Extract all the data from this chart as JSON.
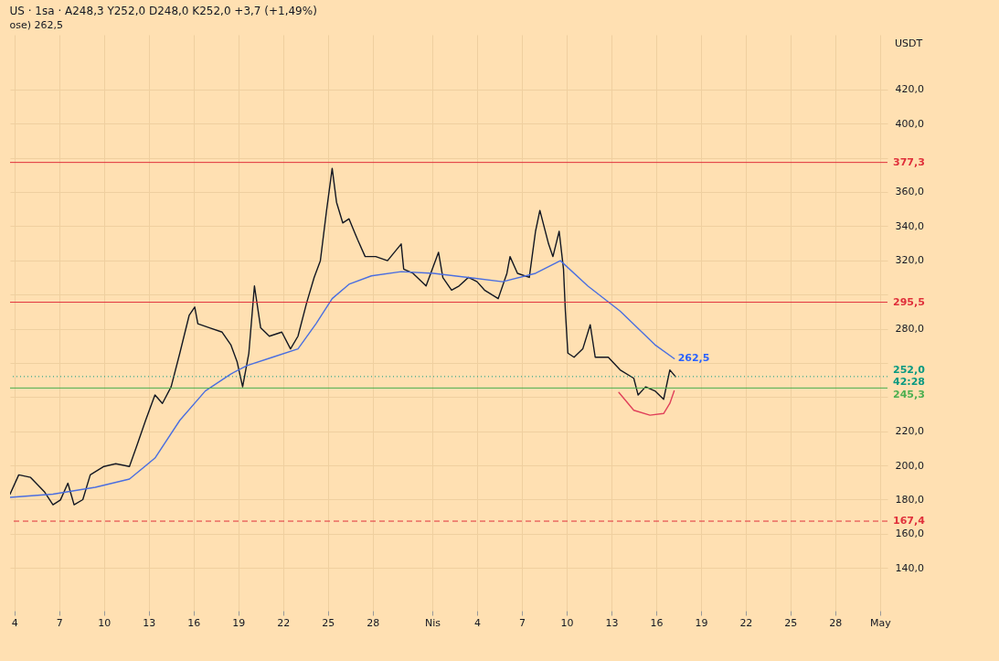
{
  "chart_data": {
    "type": "line",
    "title": "US · 1sa · A248,3 Y252,0 D248,0 K252,0 +3,7 (+1,49%)",
    "subtitle": "ose) 262,5",
    "xlim": [
      "--03-03T17:00",
      "--05-01T12:00"
    ],
    "ylim": [
      115,
      452
    ],
    "xticks": [
      {
        "value": "--03-04",
        "label": "4"
      },
      {
        "value": "--03-07",
        "label": "7"
      },
      {
        "value": "--03-10",
        "label": "10"
      },
      {
        "value": "--03-13",
        "label": "13"
      },
      {
        "value": "--03-16",
        "label": "16"
      },
      {
        "value": "--03-19",
        "label": "19"
      },
      {
        "value": "--03-22",
        "label": "22"
      },
      {
        "value": "--03-25",
        "label": "25"
      },
      {
        "value": "--03-28",
        "label": "28"
      },
      {
        "value": "--04-01",
        "label": "Nis"
      },
      {
        "value": "--04-04",
        "label": "4"
      },
      {
        "value": "--04-07",
        "label": "7"
      },
      {
        "value": "--04-10",
        "label": "10"
      },
      {
        "value": "--04-13",
        "label": "13"
      },
      {
        "value": "--04-16",
        "label": "16"
      },
      {
        "value": "--04-19",
        "label": "19"
      },
      {
        "value": "--04-22",
        "label": "22"
      },
      {
        "value": "--04-25",
        "label": "25"
      },
      {
        "value": "--04-28",
        "label": "28"
      },
      {
        "value": "--05-01",
        "label": "May"
      }
    ],
    "yticks": [
      {
        "value": 140,
        "label": "140,0"
      },
      {
        "value": 160,
        "label": "160,0"
      },
      {
        "value": 180,
        "label": "180,0"
      },
      {
        "value": 200,
        "label": "200,0"
      },
      {
        "value": 220,
        "label": "220,0"
      },
      {
        "value": 240,
        "label": null
      },
      {
        "value": 260,
        "label": null
      },
      {
        "value": 280,
        "label": "280,0"
      },
      {
        "value": 300,
        "label": null
      },
      {
        "value": 320,
        "label": "320,0"
      },
      {
        "value": 340,
        "label": "340,0"
      },
      {
        "value": 360,
        "label": "360,0"
      },
      {
        "value": 380,
        "label": null
      },
      {
        "value": 400,
        "label": "400,0"
      },
      {
        "value": 420,
        "label": "420,0"
      }
    ],
    "grid": true,
    "series": [
      {
        "color": "#131722",
        "x": [
          "--03-03T17:00",
          "--03-04T07:00",
          "--03-05T02:00",
          "--03-06T00:00",
          "--03-06T14:00",
          "--03-07T02:00",
          "--03-07T14:00",
          "--03-08T00:00",
          "--03-08T14:00",
          "--03-09T02:00",
          "--03-10T00:00",
          "--03-10T19:00",
          "--03-11T17:00",
          "--03-12T05:00",
          "--03-12T19:00",
          "--03-13T10:00",
          "--03-13T22:00",
          "--03-14T12:00",
          "--03-15T02:00",
          "--03-15T17:00",
          "--03-16T02:00",
          "--03-16T07:00",
          "--03-17T02:00",
          "--03-17T22:00",
          "--03-18T12:00",
          "--03-18T22:00",
          "--03-19T07:00",
          "--03-19T17:00",
          "--03-20T02:00",
          "--03-20T12:00",
          "--03-21T02:00",
          "--03-21T22:00",
          "--03-22T12:00",
          "--03-23T00:00",
          "--03-23T14:00",
          "--03-24T02:00",
          "--03-24T12:00",
          "--03-24T22:00",
          "--03-25T07:00",
          "--03-25T14:00",
          "--03-26T00:00",
          "--03-26T10:00",
          "--03-27T00:00",
          "--03-27T12:00",
          "--03-28T05:00",
          "--03-29T00:00",
          "--03-29T22:00",
          "--03-30T02:00",
          "--03-30T17:00",
          "--03-31T14:00",
          "--04-01T10:00",
          "--04-01T17:00",
          "--04-02T07:00",
          "--04-02T19:00",
          "--04-03T10:00",
          "--04-04T00:00",
          "--04-04T12:00",
          "--04-05T10:00",
          "--04-06T00:00",
          "--04-06T05:00",
          "--04-06T17:00",
          "--04-07T12:00",
          "--04-07T22:00",
          "--04-08T05:00",
          "--04-08T19:00",
          "--04-09T02:00",
          "--04-09T12:00",
          "--04-09T19:00",
          "--04-09T22:00",
          "--04-10T02:00",
          "--04-10T12:00",
          "--04-11T02:00",
          "--04-11T14:00",
          "--04-11T22:00",
          "--04-12T19:00",
          "--04-13T14:00",
          "--04-14T12:00",
          "--04-14T19:00",
          "--04-15T07:00",
          "--04-15T22:00",
          "--04-16T12:00",
          "--04-16T22:00",
          "--04-17T07:00"
        ],
        "values": [
          183.2,
          194.5,
          193,
          184.7,
          177,
          179.8,
          189.6,
          177,
          180,
          194.5,
          199.4,
          201,
          199.4,
          211.7,
          226.4,
          241.2,
          236.3,
          246,
          265.7,
          287.8,
          292.7,
          282.9,
          280.5,
          278,
          270.6,
          260.8,
          246,
          265.7,
          305,
          280.5,
          275.6,
          278,
          268.2,
          275.6,
          295.2,
          310,
          319.8,
          349.2,
          373.8,
          354,
          341.9,
          344.3,
          332,
          322.2,
          322.2,
          319.8,
          329.6,
          314.9,
          312.4,
          305,
          324.7,
          309.9,
          302.6,
          305,
          310,
          307.5,
          302.6,
          297.6,
          312.4,
          322.2,
          312.4,
          310,
          337,
          349.2,
          329.6,
          322.2,
          337,
          314.9,
          290.3,
          265.7,
          263.3,
          268.2,
          282.3,
          263.3,
          263.3,
          255.9,
          251,
          241.2,
          246,
          243.6,
          238.7,
          255.9,
          252
        ]
      },
      {
        "color": "#4a6ee0",
        "x": [
          "--03-03T17:00",
          "--03-06T14:00",
          "--03-09T10:00",
          "--03-11T17:00",
          "--03-13T10:00",
          "--03-15T02:00",
          "--03-16T19:00",
          "--03-18T12:00",
          "--03-19T14:00",
          "--03-21T07:00",
          "--03-23T00:00",
          "--03-24T05:00",
          "--03-25T07:00",
          "--03-26T10:00",
          "--03-27T22:00",
          "--03-29T22:00",
          "--04-01T02:00",
          "--04-03T10:00",
          "--04-05T17:00",
          "--04-07T22:00",
          "--04-09T14:00",
          "--04-11T10:00",
          "--04-13T14:00",
          "--04-15T22:00",
          "--04-17T05:00"
        ],
        "values": [
          181.3,
          183.2,
          187.2,
          192,
          204.3,
          226.4,
          243.6,
          253.5,
          258.4,
          263.3,
          268.2,
          282.9,
          297.6,
          306,
          310.9,
          313.4,
          312.4,
          310,
          307.5,
          312.4,
          319.8,
          305,
          290.3,
          270.6,
          262.5
        ]
      },
      {
        "color": "#e0405a",
        "x": [
          "--04-13T12:00",
          "--04-14T12:00",
          "--04-15T14:00",
          "--04-16T12:00",
          "--04-16T22:00",
          "--04-17T05:00"
        ],
        "values": [
          242.7,
          232.3,
          229.4,
          230.4,
          236.3,
          243.6
        ]
      }
    ],
    "ref_lines": [
      {
        "axis": "y",
        "value": 377.3,
        "label": "377,3",
        "color": "#e0303b"
      },
      {
        "axis": "y",
        "value": 295.5,
        "label": "295,5",
        "color": "#e0303b"
      },
      {
        "axis": "y",
        "value": 252,
        "label": "252,0\n42:28",
        "color": "#089981",
        "line_style": "dotted"
      },
      {
        "axis": "y",
        "value": 245.3,
        "label": "245,3",
        "color": "#4caf50"
      },
      {
        "axis": "y",
        "value": 167.4,
        "label": "167,4",
        "color": "#e0303b",
        "line_style": "dashed"
      }
    ],
    "annotations": [
      "USDT",
      {
        "text": "262,5",
        "x": "--04-17T05:00",
        "y": 262.5
      }
    ]
  }
}
